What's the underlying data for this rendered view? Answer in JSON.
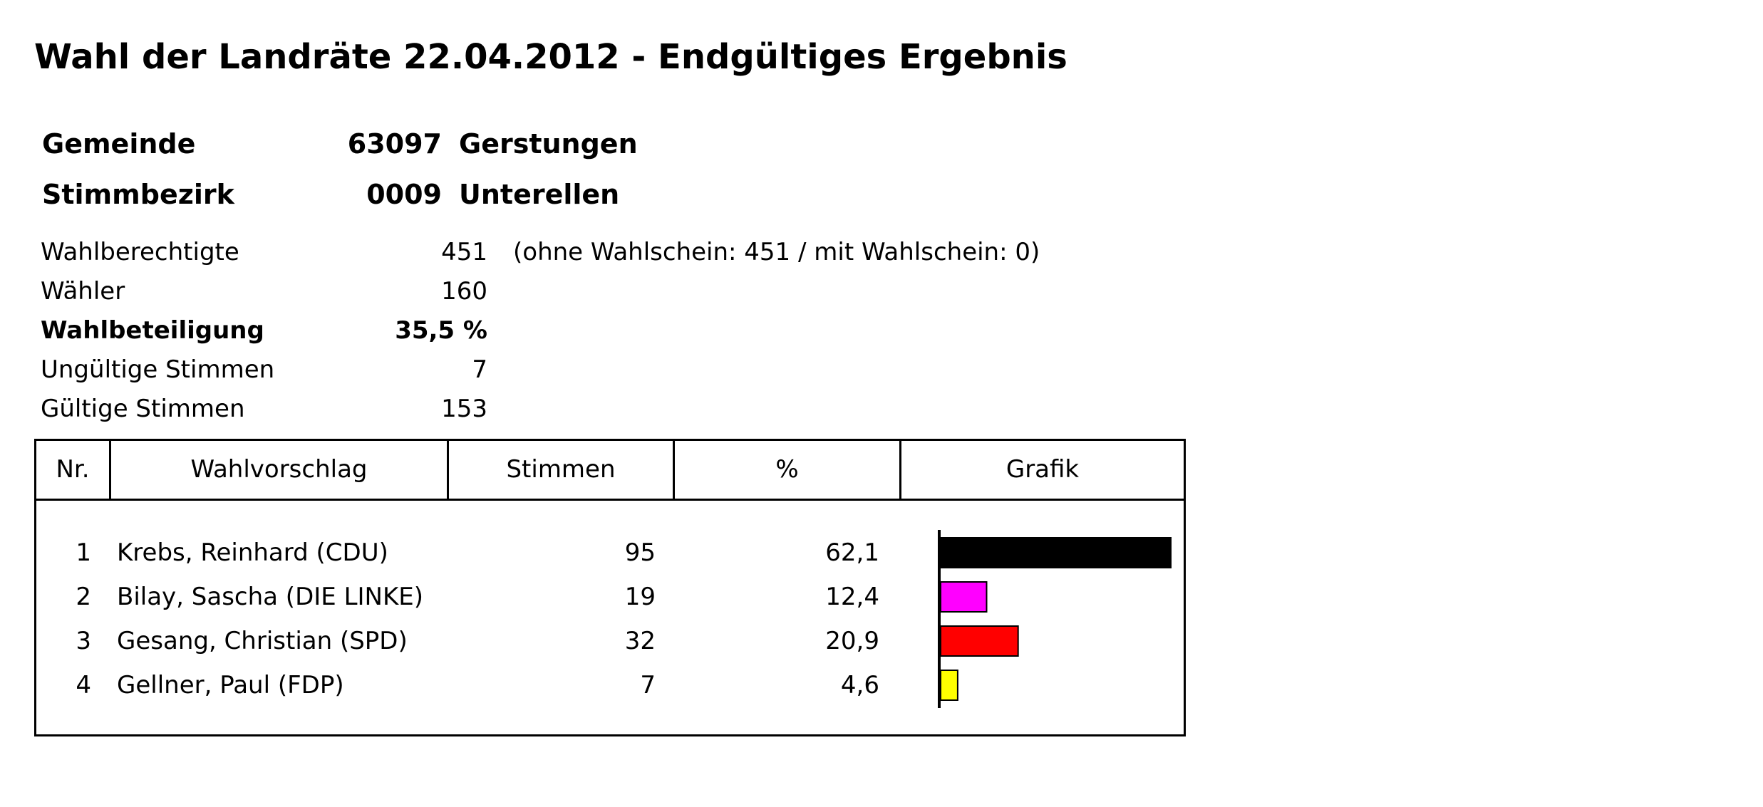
{
  "title": "Wahl der Landräte 22.04.2012 - Endgültiges Ergebnis",
  "gemeinde": {
    "label": "Gemeinde",
    "code": "63097",
    "name": "Gerstungen"
  },
  "stimmbezirk": {
    "label": "Stimmbezirk",
    "code": "0009",
    "name": "Unterellen"
  },
  "stats": {
    "wahlberechtigte": {
      "label": "Wahlberechtigte",
      "value": "451",
      "note": "(ohne Wahlschein: 451 / mit Wahlschein: 0)"
    },
    "waehler": {
      "label": "Wähler",
      "value": "160"
    },
    "wahlbeteiligung": {
      "label": "Wahlbeteiligung",
      "value": "35,5 %"
    },
    "ungueltige": {
      "label": "Ungültige Stimmen",
      "value": "7"
    },
    "gueltige": {
      "label": "Gültige Stimmen",
      "value": "153"
    }
  },
  "table": {
    "headers": {
      "nr": "Nr.",
      "wahlvorschlag": "Wahlvorschlag",
      "stimmen": "Stimmen",
      "prozent": "%",
      "grafik": "Grafik"
    },
    "rows": [
      {
        "nr": "1",
        "name": "Krebs, Reinhard (CDU)",
        "stimmen": "95",
        "prozent": "62,1"
      },
      {
        "nr": "2",
        "name": "Bilay, Sascha (DIE LINKE)",
        "stimmen": "19",
        "prozent": "12,4"
      },
      {
        "nr": "3",
        "name": "Gesang, Christian (SPD)",
        "stimmen": "32",
        "prozent": "20,9"
      },
      {
        "nr": "4",
        "name": "Gellner, Paul (FDP)",
        "stimmen": "7",
        "prozent": "4,6"
      }
    ]
  },
  "chart_data": {
    "type": "bar",
    "categories": [
      "Krebs, Reinhard (CDU)",
      "Bilay, Sascha (DIE LINKE)",
      "Gesang, Christian (SPD)",
      "Gellner, Paul (FDP)"
    ],
    "values": [
      62.1,
      12.4,
      20.9,
      4.6
    ],
    "colors": [
      "#000000",
      "#ff00ff",
      "#ff0000",
      "#ffff00"
    ],
    "xlim": [
      0,
      62.1
    ]
  }
}
